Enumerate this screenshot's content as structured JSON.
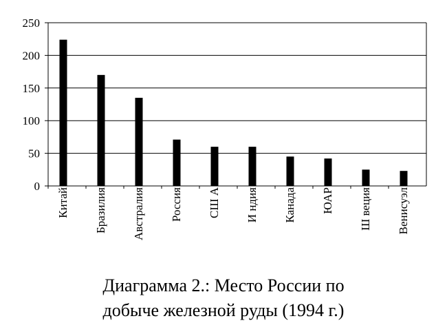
{
  "chart_data": {
    "type": "bar",
    "categories": [
      "Китай",
      "Бразилия",
      "Австралия",
      "Россия",
      "США",
      "Индия",
      "Канада",
      "ЮАР",
      "Швеция",
      "Венисуэла"
    ],
    "category_labels_displayed": [
      "Китай",
      "Бразилия",
      "Австралия",
      "Россия",
      "СШ А",
      "И ндия",
      "Канада",
      "ЮАР",
      "Ш веция",
      "Венисуэл"
    ],
    "values": [
      224,
      170,
      135,
      71,
      60,
      60,
      45,
      42,
      25,
      23
    ],
    "ylim": [
      0,
      250
    ],
    "yticks": [
      "0",
      "50",
      "100",
      "150",
      "200",
      "250"
    ],
    "grid": true,
    "bar_color": "#000000"
  },
  "caption": {
    "line1": "Диаграмма 2.: Место России по",
    "line2": "добыче железной руды (1994 г.)"
  }
}
